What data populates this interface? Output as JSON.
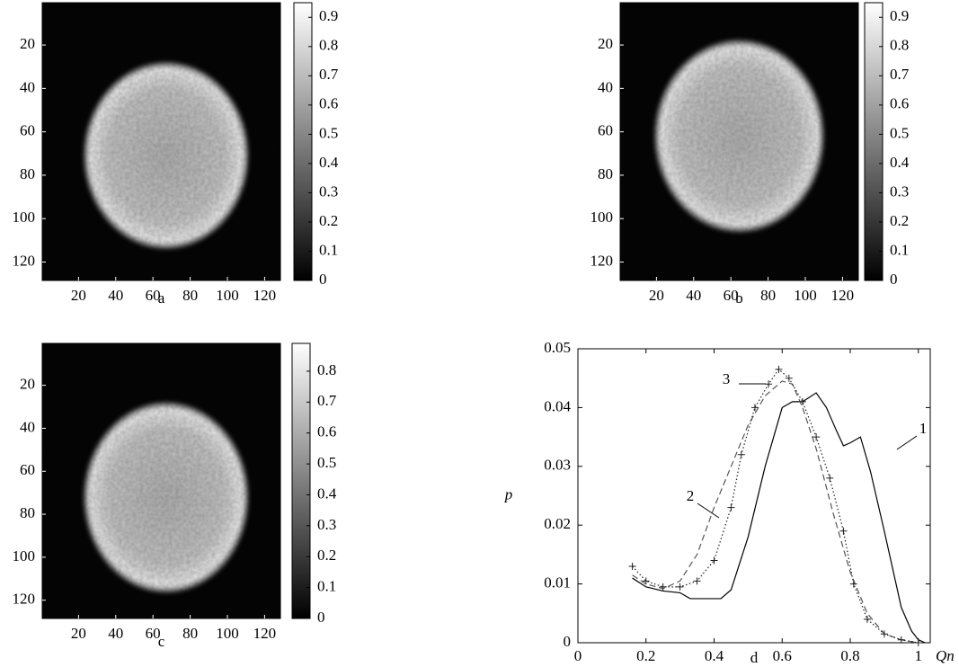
{
  "chart_data": [
    {
      "type": "image",
      "caption": "a",
      "xlim": [
        0.5,
        128.5
      ],
      "ylim": [
        0.5,
        128.5
      ],
      "xticks": [
        20,
        40,
        60,
        80,
        100,
        120
      ],
      "yticks": [
        20,
        40,
        60,
        80,
        100,
        120
      ],
      "clim": [
        0,
        0.95
      ],
      "cticks": [
        0,
        0.1,
        0.2,
        0.3,
        0.4,
        0.5,
        0.6,
        0.7,
        0.8,
        0.9
      ]
    },
    {
      "type": "image",
      "caption": "b",
      "xlim": [
        0.5,
        128.5
      ],
      "ylim": [
        0.5,
        128.5
      ],
      "xticks": [
        20,
        40,
        60,
        80,
        100,
        120
      ],
      "yticks": [
        20,
        40,
        60,
        80,
        100,
        120
      ],
      "clim": [
        0,
        0.95
      ],
      "cticks": [
        0,
        0.1,
        0.2,
        0.3,
        0.4,
        0.5,
        0.6,
        0.7,
        0.8,
        0.9
      ]
    },
    {
      "type": "image",
      "caption": "c",
      "xlim": [
        0.5,
        128.5
      ],
      "ylim": [
        0.5,
        128.5
      ],
      "xticks": [
        20,
        40,
        60,
        80,
        100,
        120
      ],
      "yticks": [
        20,
        40,
        60,
        80,
        100,
        120
      ],
      "clim": [
        0,
        0.89
      ],
      "cticks": [
        0,
        0.1,
        0.2,
        0.3,
        0.4,
        0.5,
        0.6,
        0.7,
        0.8
      ]
    },
    {
      "type": "line",
      "caption": "d",
      "xlabel": "Qn",
      "ylabel": "p",
      "xlim": [
        0,
        1.035
      ],
      "ylim": [
        0,
        0.05
      ],
      "xticks": [
        0,
        0.2,
        0.4,
        0.6,
        0.8,
        1
      ],
      "yticks": [
        0,
        0.01,
        0.02,
        0.03,
        0.04,
        0.05
      ],
      "series": [
        {
          "name": "1",
          "color": "#000000",
          "style": "solid",
          "x": [
            0.16,
            0.2,
            0.25,
            0.3,
            0.33,
            0.38,
            0.42,
            0.45,
            0.5,
            0.55,
            0.6,
            0.63,
            0.66,
            0.7,
            0.73,
            0.76,
            0.78,
            0.8,
            0.83,
            0.86,
            0.9,
            0.95,
            0.98,
            1.0,
            1.02
          ],
          "values": [
            0.011,
            0.0095,
            0.0088,
            0.0085,
            0.0075,
            0.0075,
            0.0075,
            0.009,
            0.018,
            0.03,
            0.04,
            0.041,
            0.041,
            0.0425,
            0.04,
            0.036,
            0.0335,
            0.034,
            0.035,
            0.029,
            0.019,
            0.006,
            0.002,
            0.0005,
            0
          ]
        },
        {
          "name": "2",
          "color": "#555555",
          "style": "dashed",
          "x": [
            0.16,
            0.2,
            0.25,
            0.3,
            0.35,
            0.4,
            0.45,
            0.5,
            0.55,
            0.6,
            0.63,
            0.66,
            0.7,
            0.75,
            0.8,
            0.85,
            0.9,
            0.95,
            1.0
          ],
          "values": [
            0.0115,
            0.01,
            0.0092,
            0.0105,
            0.015,
            0.023,
            0.03,
            0.037,
            0.042,
            0.0445,
            0.044,
            0.04,
            0.033,
            0.022,
            0.012,
            0.005,
            0.0015,
            0.0005,
            0
          ]
        },
        {
          "name": "3",
          "color": "#222222",
          "style": "dotted",
          "marker": "+",
          "x": [
            0.16,
            0.2,
            0.25,
            0.3,
            0.35,
            0.4,
            0.45,
            0.48,
            0.52,
            0.56,
            0.59,
            0.62,
            0.66,
            0.7,
            0.74,
            0.78,
            0.81,
            0.85,
            0.9,
            0.95,
            1.0
          ],
          "values": [
            0.013,
            0.0105,
            0.0095,
            0.0095,
            0.0105,
            0.014,
            0.023,
            0.032,
            0.04,
            0.044,
            0.0465,
            0.045,
            0.041,
            0.035,
            0.028,
            0.019,
            0.01,
            0.004,
            0.0015,
            0.0005,
            0
          ]
        }
      ]
    }
  ]
}
